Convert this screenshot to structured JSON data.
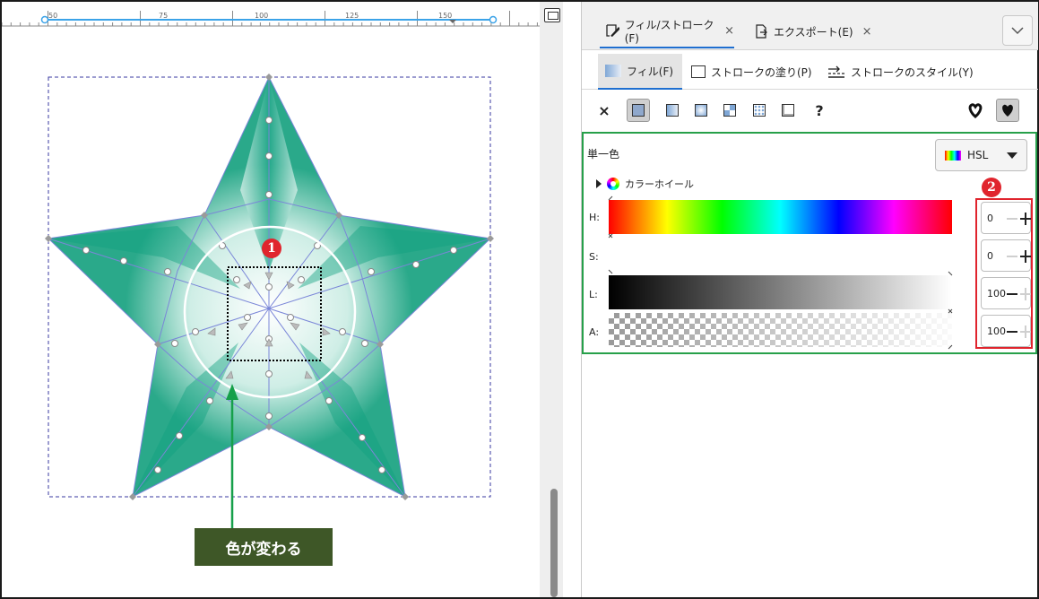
{
  "ruler": {
    "labels": [
      "50",
      "75",
      "100",
      "125",
      "150"
    ]
  },
  "panel": {
    "tabs": [
      {
        "label": "フィル/ストローク(F)",
        "close": "×"
      },
      {
        "label": "エクスポート(E)",
        "close": "×"
      }
    ],
    "subtabs": [
      {
        "label": "フィル(F)"
      },
      {
        "label": "ストロークの塗り(P)"
      },
      {
        "label": "ストロークのスタイル(Y)"
      }
    ],
    "fill_types": {
      "none": "×",
      "unknown": "?"
    },
    "solid": {
      "label": "単一色",
      "mode": "HSL",
      "wheel_label": "カラーホイール",
      "channels": [
        {
          "label": "H:",
          "value": "0"
        },
        {
          "label": "S:",
          "value": "0"
        },
        {
          "label": "L:",
          "value": "100"
        },
        {
          "label": "A:",
          "value": "100"
        }
      ]
    }
  },
  "annotations": {
    "badge1": "1",
    "badge2": "2",
    "callout": "色が変わる"
  }
}
